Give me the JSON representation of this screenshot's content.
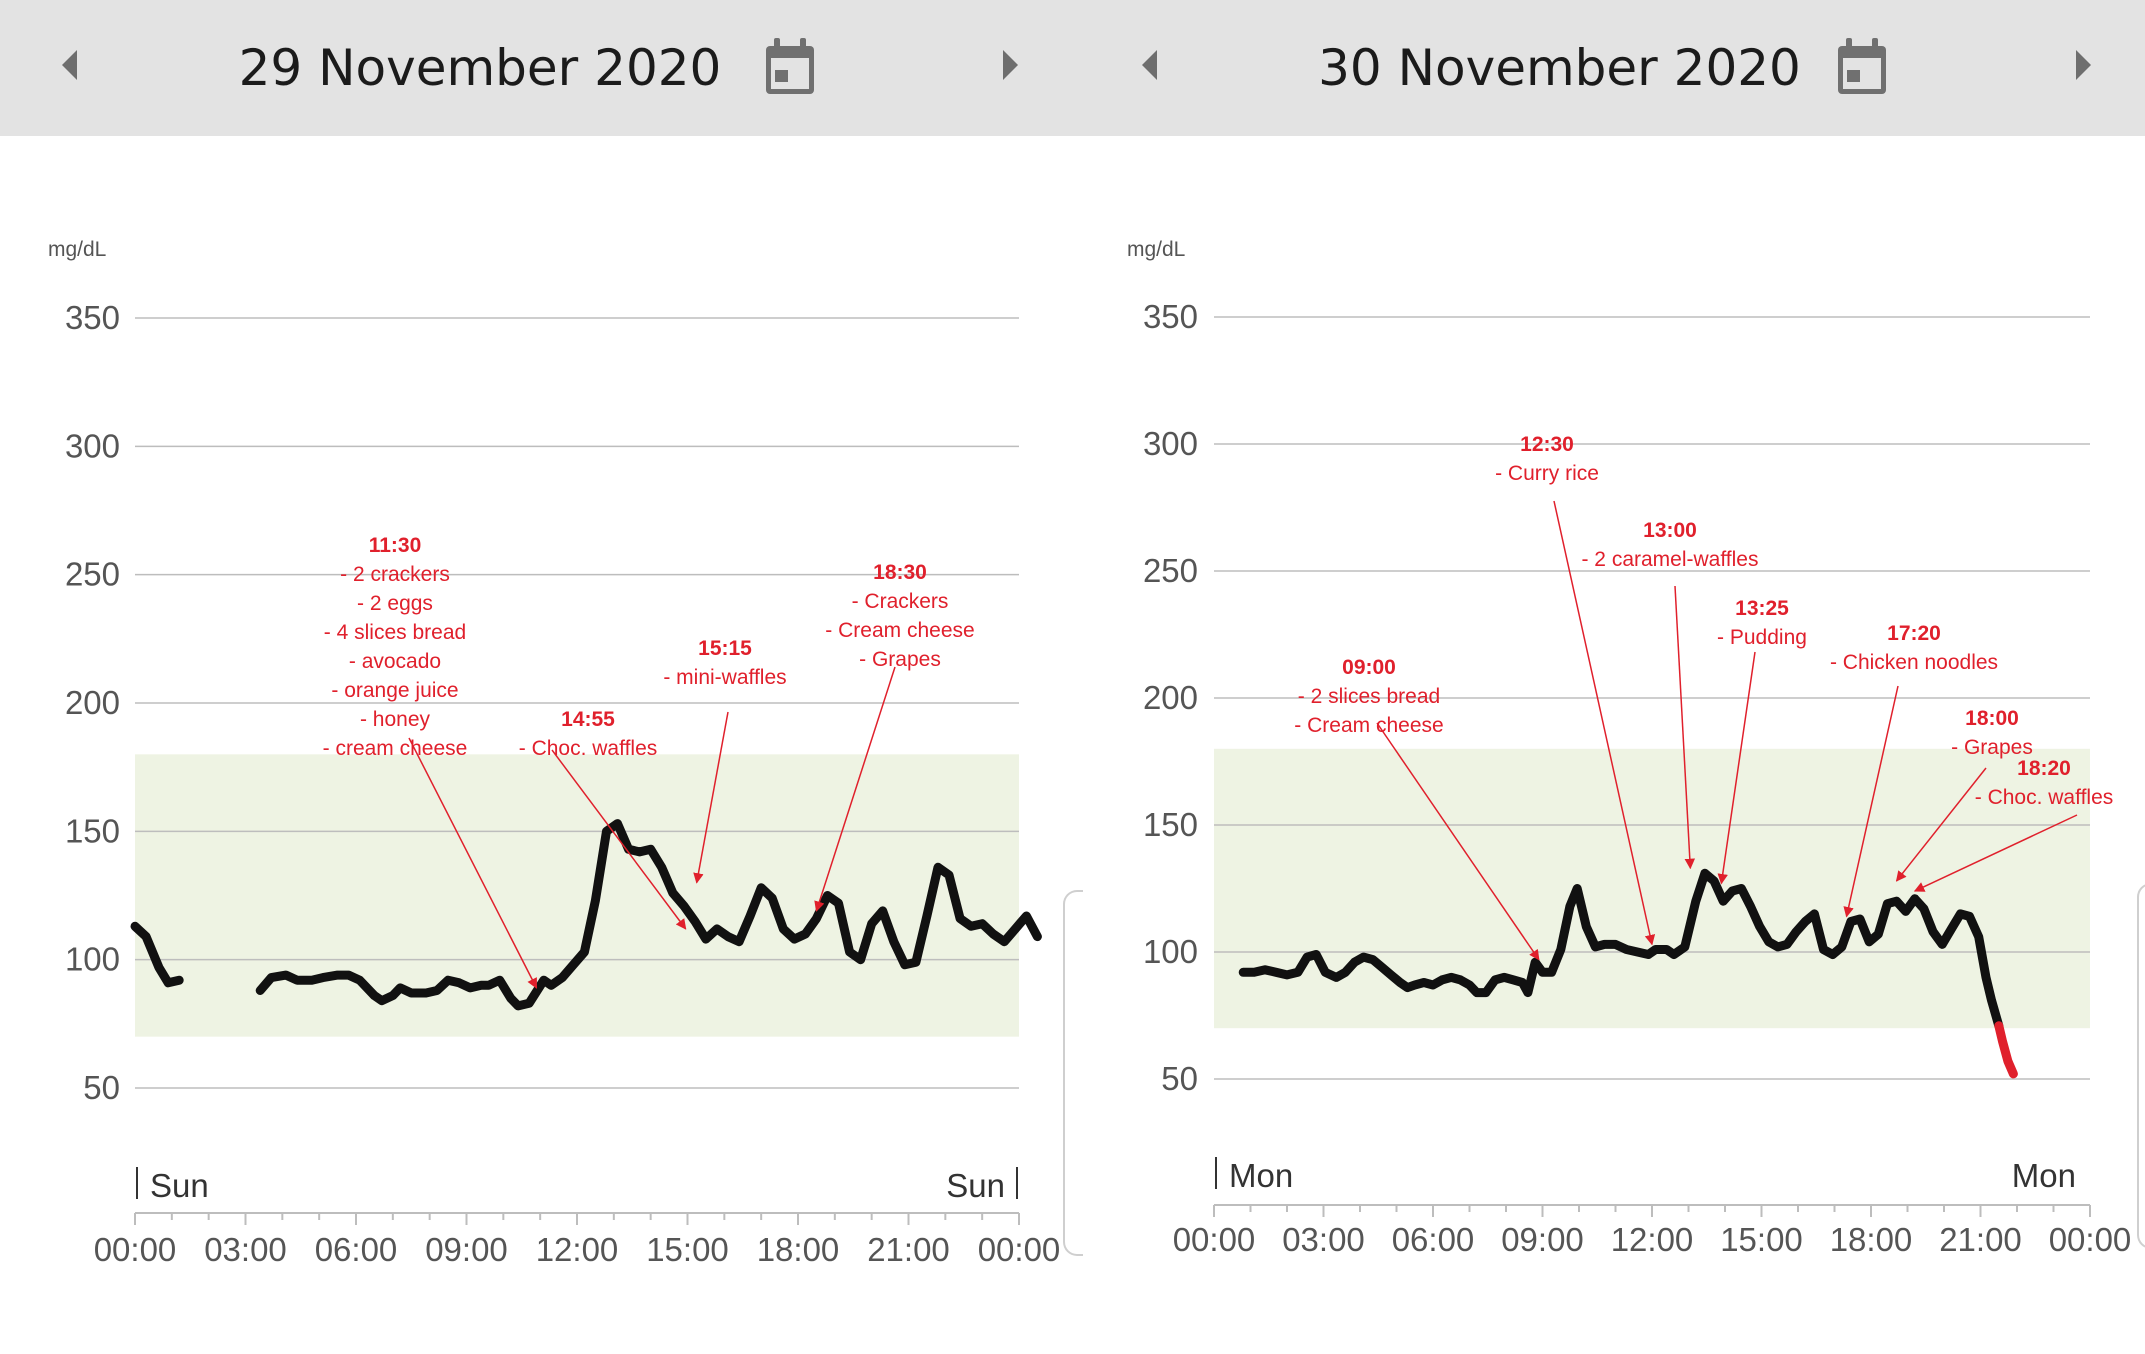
{
  "colors": {
    "header_bg": "#e3e3e3",
    "grid": "#bdbdbd",
    "target_band": "#eef3e3",
    "glucose_line": "#111111",
    "low_line": "#e0202c",
    "annotation": "#e0202c",
    "axis_text": "#555555"
  },
  "charts": [
    {
      "id": "left",
      "header": {
        "date": "29 November 2020",
        "prev_icon": "chevron-left-icon",
        "calendar_icon": "calendar-icon",
        "next_icon": "chevron-right-icon"
      },
      "chart_data": {
        "type": "line",
        "title": "29 November 2020",
        "unit_label": "mg/dL",
        "ylim": [
          25,
          375
        ],
        "y_ticks": [
          50,
          100,
          150,
          200,
          250,
          300,
          350
        ],
        "xlim": [
          0,
          24
        ],
        "x_tick_labels": [
          "00:00",
          "03:00",
          "06:00",
          "09:00",
          "12:00",
          "15:00",
          "18:00",
          "21:00",
          "00:00"
        ],
        "day_start_label": "Sun",
        "day_end_label": "Sun",
        "target_range": [
          70,
          180
        ],
        "low_threshold": 70,
        "series": [
          {
            "name": "glucose",
            "points": [
              [
                0,
                113
              ],
              [
                0.3,
                109
              ],
              [
                0.65,
                97
              ],
              [
                0.9,
                91
              ],
              [
                1.2,
                92
              ]
            ]
          },
          {
            "name": "glucose",
            "points": [
              [
                3.4,
                88
              ],
              [
                3.7,
                93
              ],
              [
                4.1,
                94
              ],
              [
                4.4,
                92
              ],
              [
                4.8,
                92
              ],
              [
                5.1,
                93
              ],
              [
                5.5,
                94
              ],
              [
                5.8,
                94
              ],
              [
                6.1,
                92
              ],
              [
                6.5,
                86
              ],
              [
                6.7,
                84
              ],
              [
                7.0,
                86
              ],
              [
                7.2,
                89
              ],
              [
                7.5,
                87
              ],
              [
                7.9,
                87
              ],
              [
                8.2,
                88
              ],
              [
                8.5,
                92
              ],
              [
                8.8,
                91
              ],
              [
                9.1,
                89
              ],
              [
                9.4,
                90
              ],
              [
                9.6,
                90
              ],
              [
                9.9,
                92
              ],
              [
                10.2,
                85
              ],
              [
                10.4,
                82
              ],
              [
                10.7,
                83
              ],
              [
                11.1,
                92
              ],
              [
                11.3,
                90
              ],
              [
                11.6,
                93
              ],
              [
                11.9,
                98
              ],
              [
                12.2,
                103
              ],
              [
                12.5,
                123
              ],
              [
                12.8,
                150
              ],
              [
                13.1,
                153
              ],
              [
                13.4,
                143
              ],
              [
                13.7,
                142
              ],
              [
                14.0,
                143
              ],
              [
                14.3,
                136
              ],
              [
                14.6,
                126
              ],
              [
                14.9,
                121
              ],
              [
                15.2,
                115
              ],
              [
                15.5,
                108
              ],
              [
                15.8,
                112
              ],
              [
                16.1,
                109
              ],
              [
                16.4,
                107
              ],
              [
                16.7,
                117
              ],
              [
                17.0,
                128
              ],
              [
                17.3,
                124
              ],
              [
                17.6,
                112
              ],
              [
                17.9,
                108
              ],
              [
                18.2,
                110
              ],
              [
                18.5,
                116
              ],
              [
                18.8,
                125
              ],
              [
                19.1,
                122
              ],
              [
                19.4,
                103
              ],
              [
                19.7,
                100
              ],
              [
                20.0,
                114
              ],
              [
                20.3,
                119
              ],
              [
                20.6,
                107
              ],
              [
                20.9,
                98
              ],
              [
                21.2,
                99
              ],
              [
                21.5,
                117
              ],
              [
                21.8,
                136
              ],
              [
                22.1,
                133
              ],
              [
                22.4,
                116
              ],
              [
                22.7,
                113
              ],
              [
                23.0,
                114
              ],
              [
                23.3,
                110
              ],
              [
                23.6,
                107
              ],
              [
                23.9,
                112
              ],
              [
                24.2,
                117
              ],
              [
                24.5,
                109
              ]
            ]
          }
        ],
        "annotations": [
          {
            "time": "11:30",
            "lines": [
              "- 2 crackers",
              "- 2 eggs",
              "- 4 slices bread",
              "- avocado",
              "- orange juice",
              "- honey",
              "- cream cheese"
            ],
            "target": [
              10.9,
              89
            ]
          },
          {
            "time": "14:55",
            "lines": [
              "- Choc. waffles"
            ],
            "target": [
              14.95,
              112
            ]
          },
          {
            "time": "15:15",
            "lines": [
              "- mini-waffles"
            ],
            "target": [
              15.25,
              130
            ]
          },
          {
            "time": "18:30",
            "lines": [
              "- Crackers",
              "- Cream cheese",
              "- Grapes"
            ],
            "target": [
              18.5,
              119
            ]
          }
        ]
      }
    },
    {
      "id": "right",
      "header": {
        "date": "30 November 2020",
        "prev_icon": "chevron-left-icon",
        "calendar_icon": "calendar-icon",
        "next_icon": "chevron-right-icon"
      },
      "chart_data": {
        "type": "line",
        "title": "30 November 2020",
        "unit_label": "mg/dL",
        "ylim": [
          25,
          375
        ],
        "y_ticks": [
          50,
          100,
          150,
          200,
          250,
          300,
          350
        ],
        "xlim": [
          0,
          24
        ],
        "x_tick_labels": [
          "00:00",
          "03:00",
          "06:00",
          "09:00",
          "12:00",
          "15:00",
          "18:00",
          "21:00",
          "00:00"
        ],
        "day_start_label": "Mon",
        "day_end_label": "Mon",
        "target_range": [
          70,
          180
        ],
        "low_threshold": 70,
        "series": [
          {
            "name": "glucose",
            "points": [
              [
                0.8,
                92
              ],
              [
                1.1,
                92
              ],
              [
                1.4,
                93
              ],
              [
                1.7,
                92
              ],
              [
                2.0,
                91
              ],
              [
                2.3,
                92
              ],
              [
                2.55,
                98
              ],
              [
                2.8,
                99
              ],
              [
                3.05,
                92
              ],
              [
                3.35,
                90
              ],
              [
                3.6,
                92
              ],
              [
                3.85,
                96
              ],
              [
                4.1,
                98
              ],
              [
                4.35,
                97
              ],
              [
                4.6,
                94
              ],
              [
                4.85,
                91
              ],
              [
                5.1,
                88
              ],
              [
                5.3,
                86
              ],
              [
                5.5,
                87
              ],
              [
                5.75,
                88
              ],
              [
                6.0,
                87
              ],
              [
                6.25,
                89
              ],
              [
                6.5,
                90
              ],
              [
                6.75,
                89
              ],
              [
                7.0,
                87
              ],
              [
                7.2,
                84
              ],
              [
                7.45,
                84
              ],
              [
                7.7,
                89
              ],
              [
                7.95,
                90
              ],
              [
                8.2,
                89
              ],
              [
                8.45,
                88
              ],
              [
                8.6,
                84
              ],
              [
                8.8,
                96
              ],
              [
                9.0,
                92
              ],
              [
                9.25,
                92
              ],
              [
                9.5,
                101
              ],
              [
                9.75,
                118
              ],
              [
                9.95,
                125
              ],
              [
                10.2,
                110
              ],
              [
                10.45,
                102
              ],
              [
                10.7,
                103
              ],
              [
                11.0,
                103
              ],
              [
                11.3,
                101
              ],
              [
                11.6,
                100
              ],
              [
                11.9,
                99
              ],
              [
                12.1,
                101
              ],
              [
                12.4,
                101
              ],
              [
                12.6,
                99
              ],
              [
                12.9,
                102
              ],
              [
                13.2,
                120
              ],
              [
                13.45,
                131
              ],
              [
                13.7,
                128
              ],
              [
                13.95,
                120
              ],
              [
                14.2,
                124
              ],
              [
                14.45,
                125
              ],
              [
                14.7,
                118
              ],
              [
                14.95,
                110
              ],
              [
                15.2,
                104
              ],
              [
                15.45,
                102
              ],
              [
                15.7,
                103
              ],
              [
                15.95,
                108
              ],
              [
                16.2,
                112
              ],
              [
                16.45,
                115
              ],
              [
                16.7,
                101
              ],
              [
                16.95,
                99
              ],
              [
                17.2,
                102
              ],
              [
                17.45,
                112
              ],
              [
                17.7,
                113
              ],
              [
                17.95,
                104
              ],
              [
                18.2,
                107
              ],
              [
                18.45,
                119
              ],
              [
                18.7,
                120
              ],
              [
                18.95,
                116
              ],
              [
                19.2,
                121
              ],
              [
                19.45,
                117
              ],
              [
                19.7,
                108
              ],
              [
                19.95,
                103
              ],
              [
                20.2,
                109
              ],
              [
                20.45,
                115
              ],
              [
                20.7,
                114
              ],
              [
                20.95,
                106
              ],
              [
                21.15,
                90
              ],
              [
                21.3,
                81
              ],
              [
                21.5,
                71
              ]
            ]
          },
          {
            "name": "glucose-low",
            "points": [
              [
                21.5,
                71
              ],
              [
                21.6,
                65
              ],
              [
                21.75,
                57
              ],
              [
                21.9,
                52
              ]
            ]
          }
        ],
        "annotations": [
          {
            "time": "09:00",
            "lines": [
              "- 2 slices bread",
              "- Cream cheese"
            ],
            "target": [
              8.9,
              97
            ]
          },
          {
            "time": "12:30",
            "lines": [
              "- Curry rice"
            ],
            "target": [
              12.0,
              103
            ]
          },
          {
            "time": "13:00",
            "lines": [
              "- 2 caramel-waffles"
            ],
            "target": [
              13.05,
              133
            ]
          },
          {
            "time": "13:25",
            "lines": [
              "- Pudding"
            ],
            "target": [
              13.9,
              127
            ]
          },
          {
            "time": "17:20",
            "lines": [
              "- Chicken noodles"
            ],
            "target": [
              17.33,
              114
            ]
          },
          {
            "time": "18:00",
            "lines": [
              "- Grapes"
            ],
            "target": [
              18.7,
              128
            ]
          },
          {
            "time": "18:20",
            "lines": [
              "- Choc. waffles"
            ],
            "target": [
              19.2,
              124
            ]
          }
        ]
      }
    }
  ]
}
